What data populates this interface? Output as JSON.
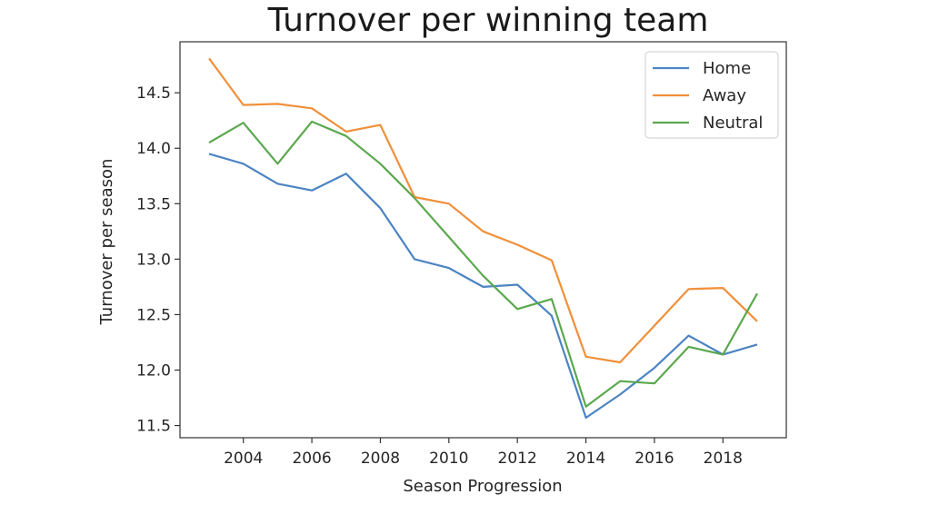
{
  "chart_data": {
    "type": "line",
    "title": "Turnover per winning team",
    "xlabel": "Season Progression",
    "ylabel": "Turnover per season",
    "xlim": [
      2002.15,
      2019.85
    ],
    "ylim": [
      11.39,
      14.96
    ],
    "xticks": [
      2004,
      2006,
      2008,
      2010,
      2012,
      2014,
      2016,
      2018
    ],
    "xtick_labels": [
      "2004",
      "2006",
      "2008",
      "2010",
      "2012",
      "2014",
      "2016",
      "2018"
    ],
    "yticks": [
      11.5,
      12.0,
      12.5,
      13.0,
      13.5,
      14.0,
      14.5
    ],
    "ytick_labels": [
      "11.5",
      "12.0",
      "12.5",
      "13.0",
      "13.5",
      "14.0",
      "14.5"
    ],
    "grid": false,
    "legend_position": "top-right",
    "x": [
      2003,
      2004,
      2005,
      2006,
      2007,
      2008,
      2009,
      2010,
      2011,
      2012,
      2013,
      2014,
      2015,
      2016,
      2017,
      2018,
      2019
    ],
    "series": [
      {
        "name": "Home",
        "color": "#4c84c2",
        "values": [
          13.95,
          13.86,
          13.68,
          13.62,
          13.77,
          13.46,
          13.0,
          12.92,
          12.75,
          12.77,
          12.49,
          11.57,
          11.78,
          12.02,
          12.31,
          12.14,
          12.23
        ]
      },
      {
        "name": "Away",
        "color": "#f0903a",
        "values": [
          14.81,
          14.39,
          14.4,
          14.36,
          14.15,
          14.21,
          13.56,
          13.5,
          13.25,
          13.13,
          12.99,
          12.12,
          12.07,
          12.4,
          12.73,
          12.74,
          12.44
        ]
      },
      {
        "name": "Neutral",
        "color": "#5ba84e",
        "values": [
          14.05,
          14.23,
          13.86,
          14.24,
          14.11,
          13.86,
          13.55,
          13.2,
          12.85,
          12.55,
          12.64,
          11.67,
          11.9,
          11.88,
          12.21,
          12.14,
          12.69
        ]
      }
    ]
  }
}
